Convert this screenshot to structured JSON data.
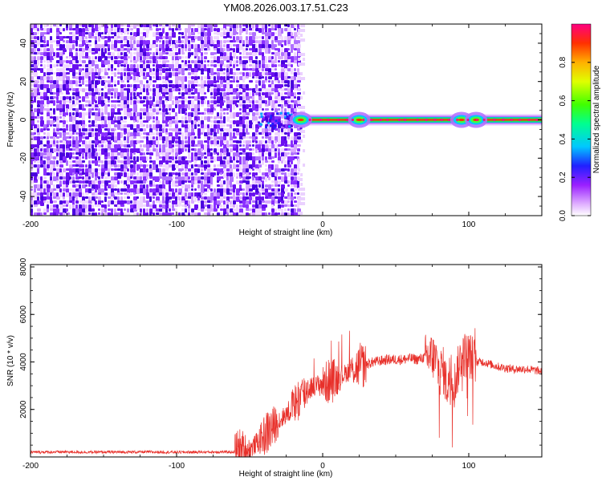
{
  "title": "YM08.2026.003.17.51.C23",
  "chart_data": [
    {
      "type": "heatmap",
      "xlabel": "Height of straight line (km)",
      "ylabel": "Frequency (Hz)",
      "xlim": [
        -200,
        150
      ],
      "ylim": [
        -50,
        50
      ],
      "x_ticks": [
        -200,
        -100,
        0,
        100
      ],
      "x_tick_labels": [
        "-200",
        "-100",
        "0",
        "100"
      ],
      "y_ticks": [
        -40,
        -20,
        0,
        20,
        40
      ],
      "y_tick_labels": [
        "-40",
        "-20",
        "0",
        "20",
        "40"
      ],
      "colorbar": {
        "label": "Normalized spectral amplitude",
        "range": [
          0,
          1
        ],
        "ticks": [
          0,
          0.2,
          0.4,
          0.6,
          0.8
        ],
        "tick_labels": [
          "0.0",
          "0.2",
          "0.4",
          "0.6",
          "0.8"
        ],
        "colormap": "rainbow"
      },
      "features": {
        "noise_region_x": [
          -200,
          -17
        ],
        "signal_frequency_hz": 0,
        "bright_clusters_x": [
          -15,
          25,
          95,
          105
        ]
      }
    },
    {
      "type": "line",
      "xlabel": "Height of straight line (km)",
      "ylabel": "SNR (10 * v/v)",
      "xlim": [
        -200,
        150
      ],
      "ylim": [
        0,
        8100
      ],
      "x_ticks": [
        -200,
        -100,
        0,
        100
      ],
      "x_tick_labels": [
        "-200",
        "-100",
        "0",
        "100"
      ],
      "y_ticks": [
        2000,
        4000,
        6000,
        8000
      ],
      "y_tick_labels": [
        "2000",
        "4000",
        "6000",
        "8000"
      ],
      "color": "#e8302a",
      "series": [
        {
          "x": [
            -200,
            -180,
            -160,
            -140,
            -120,
            -100,
            -80,
            -60,
            -50,
            -45,
            -40,
            -35,
            -30,
            -25,
            -20,
            -15,
            -12,
            -10,
            -5,
            0,
            5,
            10,
            15,
            20,
            25,
            30,
            35,
            40,
            45,
            50,
            55,
            60,
            65,
            70,
            75,
            78,
            80,
            82,
            85,
            88,
            90,
            95,
            100,
            105,
            110,
            120,
            130,
            140,
            150
          ],
          "y": [
            200,
            210,
            200,
            205,
            210,
            200,
            205,
            210,
            300,
            600,
            900,
            1200,
            1500,
            1800,
            2200,
            2500,
            2700,
            2900,
            3000,
            3100,
            3200,
            3300,
            3500,
            3700,
            3800,
            3900,
            4000,
            4050,
            4100,
            4100,
            4100,
            4150,
            4100,
            4200,
            4250,
            4000,
            3500,
            3800,
            3000,
            3600,
            3000,
            4300,
            4300,
            4000,
            4000,
            3800,
            3700,
            3700,
            3600
          ]
        }
      ]
    }
  ]
}
